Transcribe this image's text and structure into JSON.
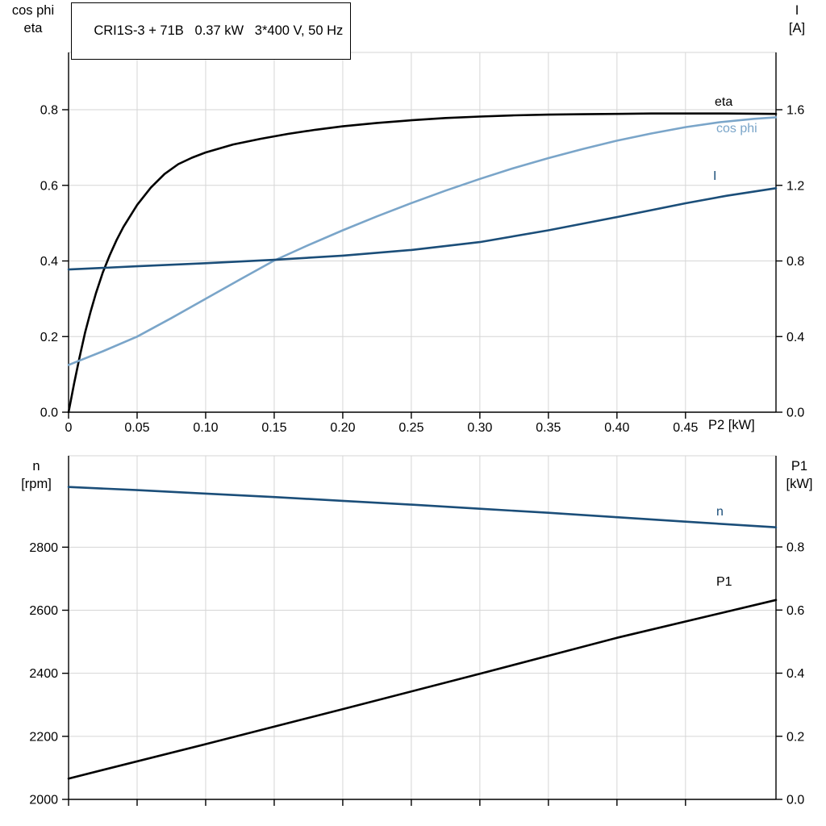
{
  "colors": {
    "black": "#000000",
    "dark_blue": "#1b4e79",
    "light_blue": "#7aa5c9",
    "grid": "#d6d6d6",
    "background": "#ffffff"
  },
  "chart_data": [
    {
      "type": "line",
      "title": "CRI1S-3 + 71B   0.37 kW   3*400 V, 50 Hz",
      "grid": true,
      "legend_position": "curve-end-labels",
      "x_axis": {
        "label": "P2 [kW]",
        "min": 0,
        "max": 0.516,
        "ticks": [
          0,
          0.05,
          0.1,
          0.15,
          0.2,
          0.25,
          0.3,
          0.35,
          0.4,
          0.45
        ],
        "tick_labels": [
          "0",
          "0.05",
          "0.10",
          "0.15",
          "0.20",
          "0.25",
          "0.30",
          "0.35",
          "0.40",
          "0.45"
        ]
      },
      "left_axis": {
        "label_lines": [
          "cos phi",
          "eta"
        ],
        "min": 0,
        "max": 0.9515,
        "ticks": [
          0,
          0.2,
          0.4,
          0.6,
          0.8
        ],
        "tick_labels": [
          "0.0",
          "0.2",
          "0.4",
          "0.6",
          "0.8"
        ]
      },
      "right_axis": {
        "label_lines": [
          "I",
          "[A]"
        ],
        "min": 0,
        "max": 1.903,
        "ticks": [
          0,
          0.4,
          0.8,
          1.2,
          1.6
        ],
        "tick_labels": [
          "0.0",
          "0.4",
          "0.8",
          "1.2",
          "1.6"
        ]
      },
      "series": [
        {
          "name": "eta",
          "axis": "left",
          "color": "#000000",
          "points": [
            [
              0,
              0
            ],
            [
              0.004,
              0.075
            ],
            [
              0.008,
              0.145
            ],
            [
              0.012,
              0.21
            ],
            [
              0.016,
              0.265
            ],
            [
              0.02,
              0.315
            ],
            [
              0.025,
              0.37
            ],
            [
              0.03,
              0.415
            ],
            [
              0.035,
              0.455
            ],
            [
              0.04,
              0.49
            ],
            [
              0.05,
              0.548
            ],
            [
              0.06,
              0.594
            ],
            [
              0.07,
              0.63
            ],
            [
              0.08,
              0.656
            ],
            [
              0.09,
              0.673
            ],
            [
              0.1,
              0.687
            ],
            [
              0.12,
              0.708
            ],
            [
              0.14,
              0.723
            ],
            [
              0.16,
              0.736
            ],
            [
              0.18,
              0.747
            ],
            [
              0.2,
              0.756
            ],
            [
              0.225,
              0.765
            ],
            [
              0.25,
              0.772
            ],
            [
              0.275,
              0.778
            ],
            [
              0.3,
              0.782
            ],
            [
              0.325,
              0.785
            ],
            [
              0.35,
              0.787
            ],
            [
              0.375,
              0.788
            ],
            [
              0.4,
              0.789
            ],
            [
              0.425,
              0.79
            ],
            [
              0.45,
              0.79
            ],
            [
              0.48,
              0.79
            ],
            [
              0.516,
              0.789
            ]
          ]
        },
        {
          "name": "cos phi",
          "axis": "left",
          "color": "#7aa5c9",
          "points": [
            [
              0,
              0.125
            ],
            [
              0.025,
              0.161
            ],
            [
              0.05,
              0.2
            ],
            [
              0.075,
              0.249
            ],
            [
              0.1,
              0.3
            ],
            [
              0.125,
              0.351
            ],
            [
              0.15,
              0.401
            ],
            [
              0.175,
              0.442
            ],
            [
              0.2,
              0.481
            ],
            [
              0.225,
              0.518
            ],
            [
              0.25,
              0.553
            ],
            [
              0.275,
              0.586
            ],
            [
              0.3,
              0.617
            ],
            [
              0.325,
              0.646
            ],
            [
              0.35,
              0.672
            ],
            [
              0.375,
              0.696
            ],
            [
              0.4,
              0.718
            ],
            [
              0.425,
              0.737
            ],
            [
              0.45,
              0.754
            ],
            [
              0.475,
              0.767
            ],
            [
              0.5,
              0.776
            ],
            [
              0.516,
              0.78
            ]
          ]
        },
        {
          "name": "I",
          "axis": "right",
          "color": "#1b4e79",
          "points": [
            [
              0,
              0.755
            ],
            [
              0.05,
              0.772
            ],
            [
              0.1,
              0.788
            ],
            [
              0.15,
              0.806
            ],
            [
              0.2,
              0.828
            ],
            [
              0.25,
              0.858
            ],
            [
              0.3,
              0.9
            ],
            [
              0.35,
              0.962
            ],
            [
              0.4,
              1.032
            ],
            [
              0.45,
              1.105
            ],
            [
              0.48,
              1.145
            ],
            [
              0.516,
              1.185
            ]
          ]
        }
      ]
    },
    {
      "type": "line",
      "title": "",
      "grid": true,
      "legend_position": "curve-end-labels",
      "x_axis": {
        "label": "",
        "min": 0,
        "max": 0.516,
        "ticks": [
          0,
          0.05,
          0.1,
          0.15,
          0.2,
          0.25,
          0.3,
          0.35,
          0.4,
          0.45
        ],
        "tick_labels": []
      },
      "left_axis": {
        "label_lines": [
          "n",
          "[rpm]"
        ],
        "min": 2000,
        "max": 3090,
        "ticks": [
          2000,
          2200,
          2400,
          2600,
          2800
        ],
        "tick_labels": [
          "2000",
          "2200",
          "2400",
          "2600",
          "2800"
        ]
      },
      "right_axis": {
        "label_lines": [
          "P1",
          "[kW]"
        ],
        "min": 0,
        "max": 1.089,
        "ticks": [
          0,
          0.2,
          0.4,
          0.6,
          0.8
        ],
        "tick_labels": [
          "0.0",
          "0.2",
          "0.4",
          "0.6",
          "0.8"
        ]
      },
      "series": [
        {
          "name": "n",
          "axis": "left",
          "color": "#1b4e79",
          "points": [
            [
              0,
              2991
            ],
            [
              0.05,
              2981
            ],
            [
              0.1,
              2970
            ],
            [
              0.15,
              2959
            ],
            [
              0.2,
              2947
            ],
            [
              0.25,
              2935
            ],
            [
              0.3,
              2922
            ],
            [
              0.35,
              2909
            ],
            [
              0.4,
              2895
            ],
            [
              0.45,
              2881
            ],
            [
              0.516,
              2863
            ]
          ]
        },
        {
          "name": "P1",
          "axis": "right",
          "color": "#000000",
          "points": [
            [
              0,
              0.066
            ],
            [
              0.1,
              0.175
            ],
            [
              0.2,
              0.286
            ],
            [
              0.3,
              0.398
            ],
            [
              0.4,
              0.512
            ],
            [
              0.516,
              0.632
            ]
          ]
        }
      ]
    }
  ]
}
